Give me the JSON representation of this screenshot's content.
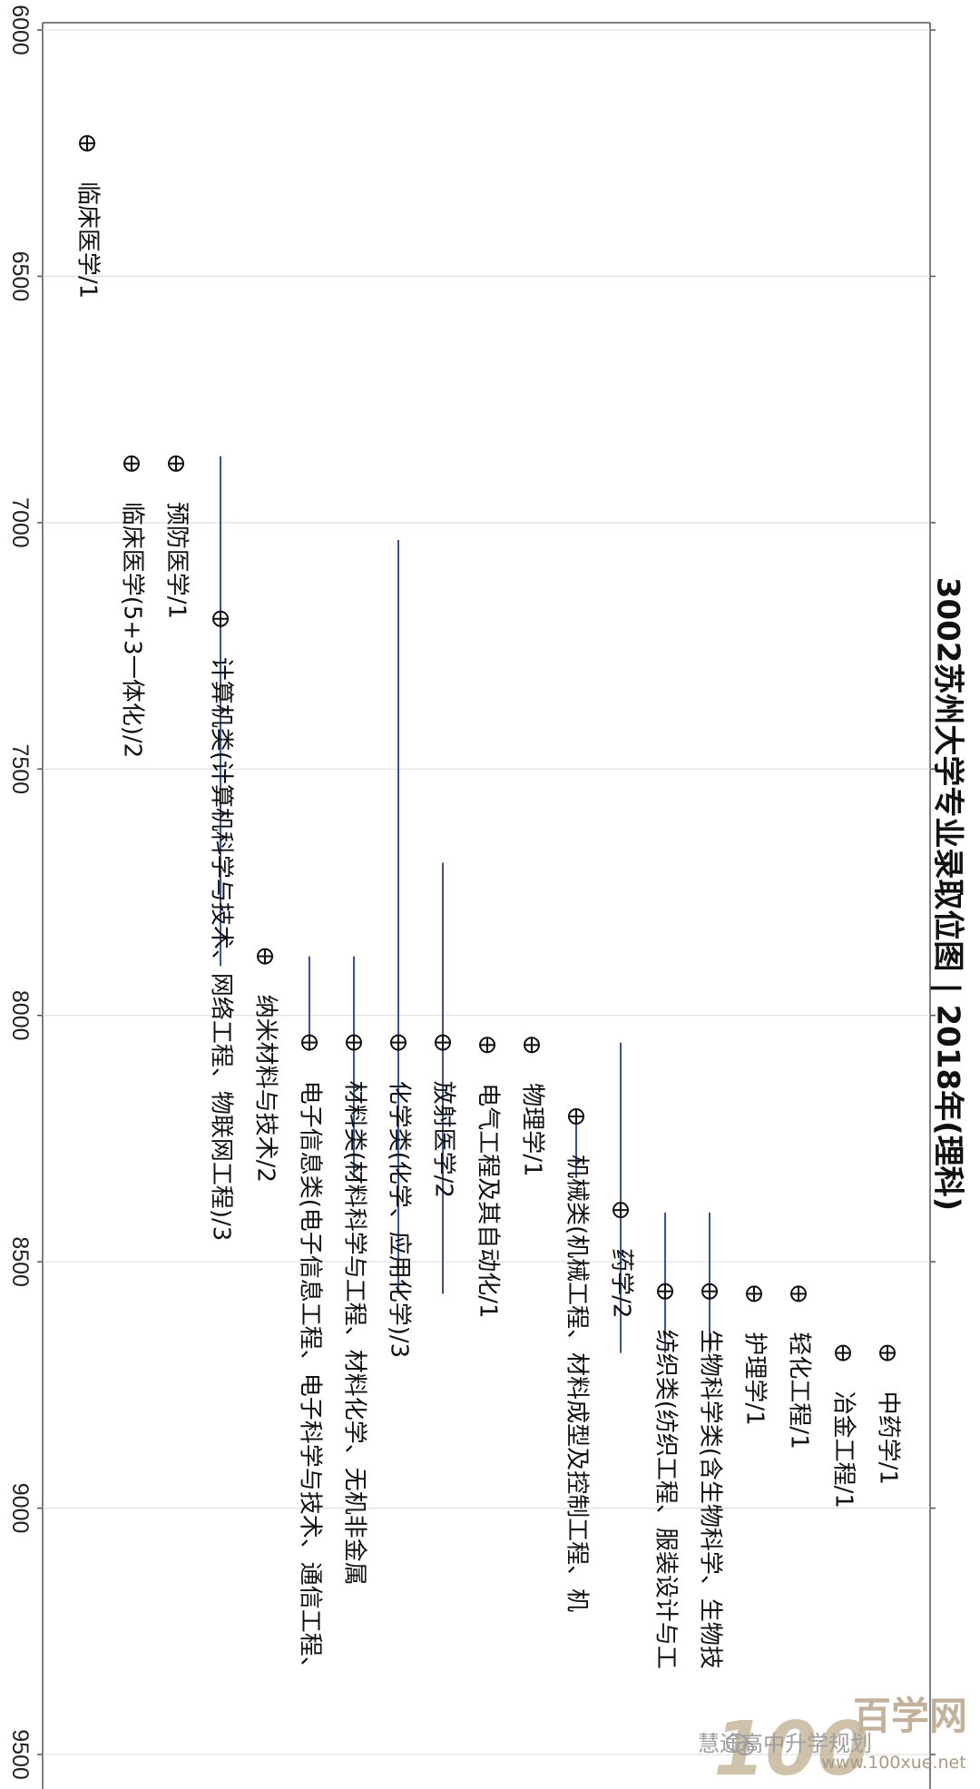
{
  "chart_data": {
    "type": "scatter",
    "title": "3002苏州大学专业录取位图 | 2018年(理科)",
    "axis_ticks": [
      "6000",
      "6500",
      "7000",
      "7500",
      "8000",
      "8500",
      "9000",
      "9500"
    ],
    "ylim": [
      6000,
      9500
    ],
    "grid": true,
    "items": [
      {
        "label": "临床医学/1",
        "rank": 6230
      },
      {
        "label": "临床医学(5+3一体化)/2",
        "rank": 6880
      },
      {
        "label": "预防医学/1",
        "rank": 6880
      },
      {
        "label": "计算机类(计算机科学与技术、网络工程、物联网工程)/3",
        "rank": 7195,
        "range": [
          6865,
          7900
        ]
      },
      {
        "label": "纳米材料与技术/2",
        "rank": 7880
      },
      {
        "label": "电子信息类(电子信息工程、电子科学与技术、通信工程、",
        "rank": 8055,
        "range": [
          7880,
          8055
        ]
      },
      {
        "label": "材料类(材料科学与工程、材料化学、无机非金属",
        "rank": 8055,
        "range": [
          7880,
          8330
        ]
      },
      {
        "label": "化学类(化学、应用化学)/3",
        "rank": 8055,
        "range": [
          7035,
          8565
        ]
      },
      {
        "label": "放射医学/2",
        "rank": 8055,
        "range": [
          7690,
          8565
        ]
      },
      {
        "label": "电气工程及其自动化/1",
        "rank": 8060
      },
      {
        "label": "物理学/1",
        "rank": 8060
      },
      {
        "label": "机械类(机械工程、材料成型及控制工程、机",
        "rank": 8205,
        "range": [
          8205,
          8330
        ]
      },
      {
        "label": "药学/2",
        "rank": 8395,
        "range": [
          8055,
          8685
        ]
      },
      {
        "label": "纺织类(纺织工程、服装设计与工",
        "rank": 8560,
        "range": [
          8400,
          8685
        ]
      },
      {
        "label": "生物科学类(含生物科学、生物技",
        "rank": 8560,
        "range": [
          8400,
          8685
        ]
      },
      {
        "label": "护理学/1",
        "rank": 8565
      },
      {
        "label": "轻化工程/1",
        "rank": 8565
      },
      {
        "label": "冶金工程/1",
        "rank": 8685
      },
      {
        "label": "中药学/1",
        "rank": 8685
      }
    ]
  },
  "watermark": {
    "logo_number": "100",
    "logo_name": "百学网",
    "url": "www.100xue.net",
    "wechat_text": "慧途高中升学规划"
  },
  "colors": {
    "range_line": "#3a4f9e",
    "grid": "#d9d9d9",
    "axis": "#555555",
    "marker": "#111111",
    "logo": "#b8a58a"
  }
}
